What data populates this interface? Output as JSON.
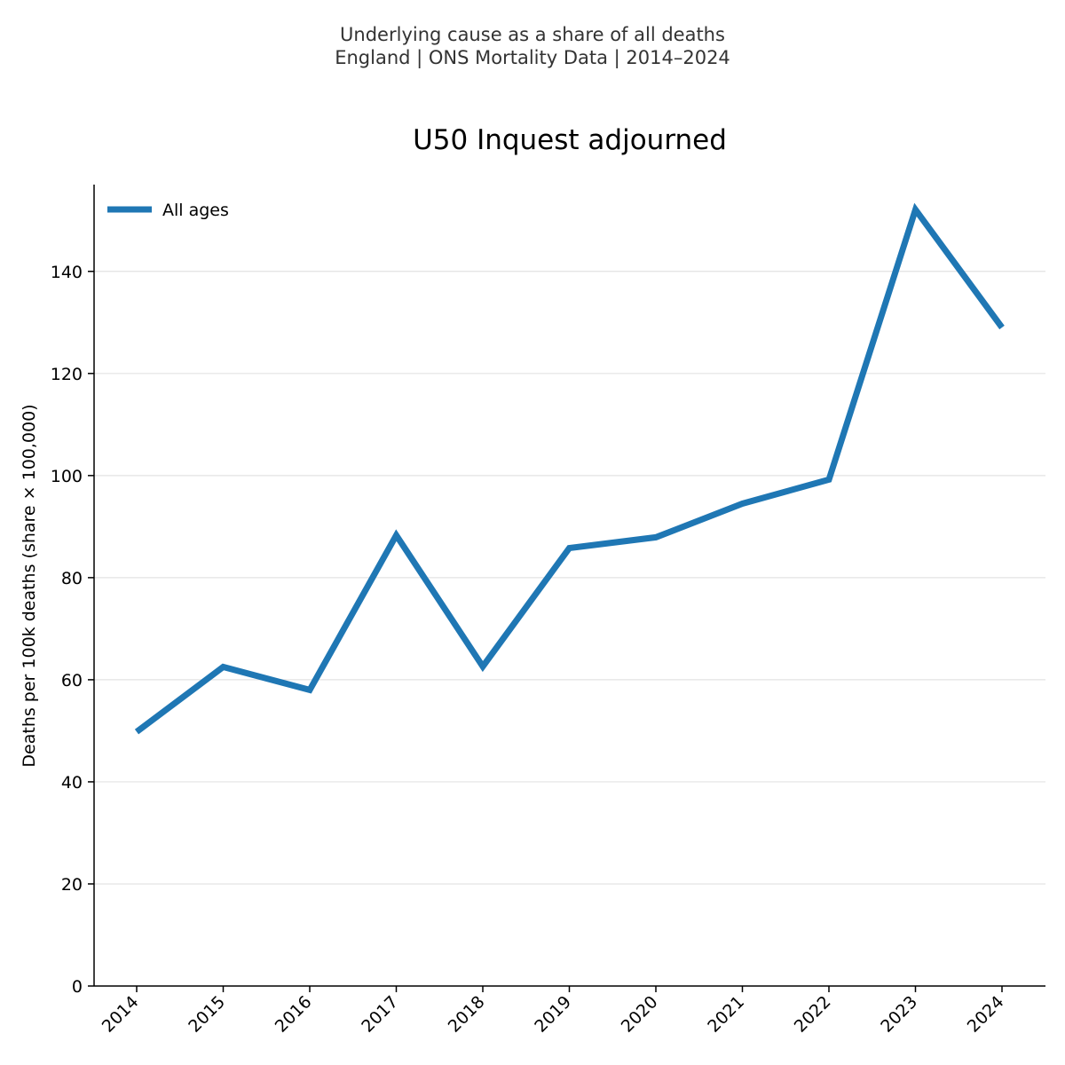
{
  "header": {
    "subtitle_line1": "Underlying cause as a share of all deaths",
    "subtitle_line2": "England | ONS Mortality Data | 2014–2024"
  },
  "chart_data": {
    "type": "line",
    "title": "U50 Inquest adjourned",
    "xlabel": "",
    "ylabel": "Deaths per 100k deaths (share × 100,000)",
    "categories": [
      "2014",
      "2015",
      "2016",
      "2017",
      "2018",
      "2019",
      "2020",
      "2021",
      "2022",
      "2023",
      "2024"
    ],
    "series": [
      {
        "name": "All ages",
        "color": "#1f77b4",
        "values": [
          49.8,
          62.5,
          58.0,
          88.3,
          62.6,
          85.8,
          87.9,
          94.5,
          99.2,
          152.1,
          129.0
        ]
      }
    ],
    "ylim": [
      0,
      157
    ],
    "yticks": [
      0,
      20,
      40,
      60,
      80,
      100,
      120,
      140
    ],
    "grid": true,
    "legend_position": "top-left"
  }
}
